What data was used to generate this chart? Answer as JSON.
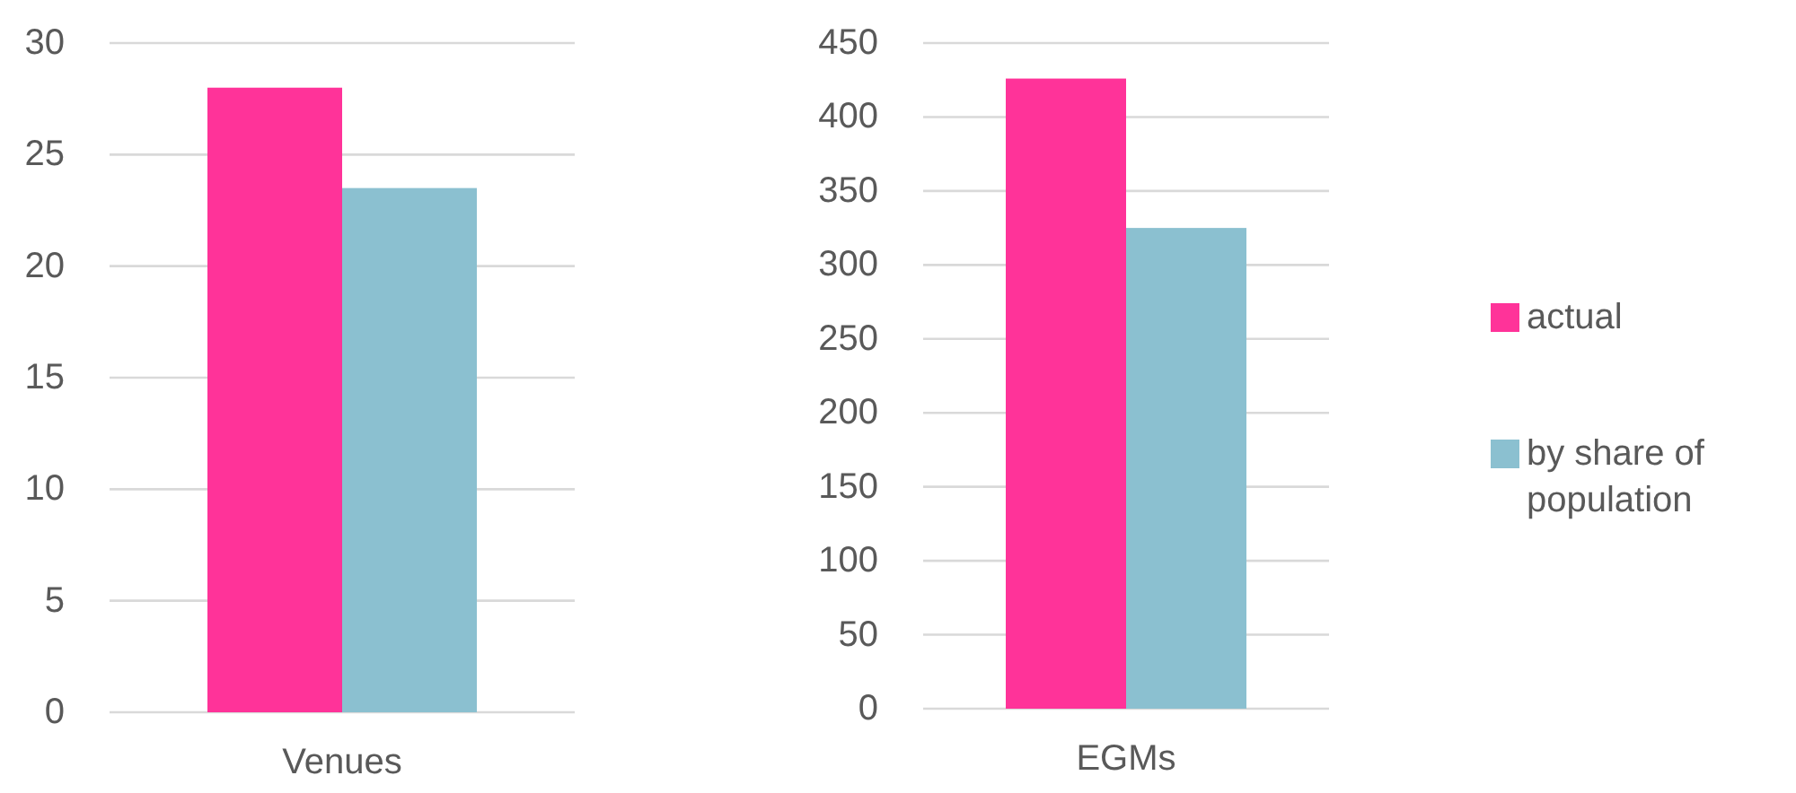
{
  "chart_data": [
    {
      "type": "bar",
      "categories": [
        "Venues"
      ],
      "series": [
        {
          "color": "#ff3399",
          "values": [
            28
          ]
        },
        {
          "color": "#8bc0d0",
          "values": [
            23.5
          ]
        }
      ],
      "ylim": [
        0,
        30
      ],
      "yticks": [
        0,
        5,
        10,
        15,
        20,
        25,
        30
      ],
      "grid": "y",
      "legend": false
    },
    {
      "type": "bar",
      "categories": [
        "EGMs"
      ],
      "series": [
        {
          "name": "actual",
          "color": "#ff3399",
          "values": [
            426
          ]
        },
        {
          "name": "by share of population",
          "color": "#8bc0d0",
          "values": [
            325
          ]
        }
      ],
      "ylim": [
        0,
        450
      ],
      "yticks": [
        0,
        50,
        100,
        150,
        200,
        250,
        300,
        350,
        400,
        450
      ],
      "grid": "y",
      "legend": "right"
    }
  ]
}
